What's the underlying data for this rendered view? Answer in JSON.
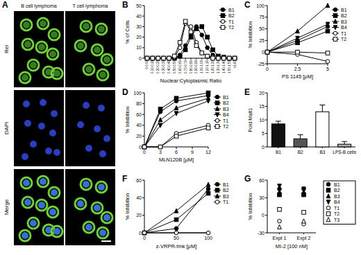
{
  "panel_a": {
    "title": "A",
    "columns": [
      "B cell lymphoma",
      "T cell lymphoma"
    ],
    "rows": [
      "Rel",
      "DAPI",
      "Merge"
    ]
  },
  "chart_data": [
    {
      "type": "line",
      "title": "B",
      "x_label": "Nuclear:Cytoplasmic Ratio",
      "y_label": "% of Cells",
      "categories": [
        "0-0.09",
        "0.10-0.19",
        "0.20-0.29",
        "0.30-0.39",
        "0.40-0.49",
        "0.50-0.59",
        "0.60-0.69",
        "0.70-0.79",
        "0.80-0.89",
        "0.90-0.99",
        "1.00-1.09",
        "1.10-1.19",
        "1.20-1.29",
        "1.30-1.39",
        "1.40-1.49",
        "1.50-1.59",
        ">1.60"
      ],
      "ylim": [
        0,
        50
      ],
      "yticks": [
        0,
        10,
        20,
        30,
        40,
        50
      ],
      "legend": "top-right",
      "series": [
        {
          "name": "B1",
          "color": "#000000",
          "marker": "circle",
          "values": [
            0,
            0,
            0,
            0,
            0,
            0,
            3,
            12,
            22,
            30,
            22,
            10,
            3,
            1,
            0,
            0,
            0
          ]
        },
        {
          "name": "B2",
          "color": "#000000",
          "marker": "square",
          "values": [
            0,
            0,
            0,
            0,
            0,
            0,
            2,
            8,
            20,
            28,
            30,
            20,
            8,
            2,
            1,
            0,
            0
          ]
        },
        {
          "name": "T1",
          "color": "#000000",
          "marker": "open-circle",
          "values": [
            0,
            0,
            0,
            0,
            0,
            1,
            10,
            33,
            30,
            15,
            5,
            2,
            1,
            0,
            0,
            0,
            0
          ]
        },
        {
          "name": "T2",
          "color": "#000000",
          "marker": "open-square",
          "values": [
            0,
            0,
            0,
            0,
            0,
            2,
            15,
            35,
            25,
            12,
            5,
            2,
            0,
            0,
            0,
            0,
            0
          ]
        }
      ]
    },
    {
      "type": "line",
      "title": "C",
      "x_label": "PS 1145 [μM]",
      "y_label": "% Inhibition",
      "x": [
        0,
        2.5,
        5
      ],
      "xlim": [
        0,
        5
      ],
      "xticks": [
        0,
        2.5,
        5
      ],
      "ylim": [
        -25,
        100
      ],
      "yticks": [
        -25,
        0,
        25,
        50,
        75,
        100
      ],
      "legend": "top-right",
      "series": [
        {
          "name": "B1",
          "color": "#000000",
          "marker": "circle",
          "values": [
            0,
            25,
            55
          ]
        },
        {
          "name": "B2",
          "color": "#000000",
          "marker": "square",
          "values": [
            0,
            20,
            45
          ]
        },
        {
          "name": "B3",
          "color": "#000000",
          "marker": "triangle",
          "values": [
            0,
            45,
            100
          ]
        },
        {
          "name": "B4",
          "color": "#000000",
          "marker": "triangle-down",
          "values": [
            0,
            30,
            60
          ]
        },
        {
          "name": "T1",
          "color": "#000000",
          "marker": "open-circle",
          "values": [
            0,
            -5,
            -20
          ]
        },
        {
          "name": "T2",
          "color": "#000000",
          "marker": "open-square",
          "values": [
            0,
            0,
            -2
          ]
        }
      ]
    },
    {
      "type": "line",
      "title": "D",
      "x_label": "MLN120B [μM]",
      "y_label": "% Inhibition",
      "x": [
        0,
        3,
        6,
        12
      ],
      "xlim": [
        0,
        12
      ],
      "xticks": [
        0,
        3,
        6,
        9,
        12
      ],
      "ylim": [
        0,
        100
      ],
      "yticks": [
        0,
        20,
        40,
        60,
        80,
        100
      ],
      "legend": "top-right",
      "series": [
        {
          "name": "B1",
          "color": "#000000",
          "marker": "circle",
          "values": [
            0,
            65,
            85,
            95
          ]
        },
        {
          "name": "B2",
          "color": "#000000",
          "marker": "square",
          "values": [
            0,
            70,
            90,
            100
          ]
        },
        {
          "name": "B3",
          "color": "#000000",
          "marker": "triangle",
          "values": [
            0,
            50,
            72,
            90
          ]
        },
        {
          "name": "B4",
          "color": "#000000",
          "marker": "triangle-down",
          "values": [
            0,
            40,
            62,
            85
          ]
        },
        {
          "name": "T1",
          "color": "#000000",
          "marker": "open-circle",
          "values": [
            0,
            0,
            25,
            40
          ]
        },
        {
          "name": "T2",
          "color": "#000000",
          "marker": "open-square",
          "values": [
            0,
            0,
            20,
            35
          ]
        }
      ]
    },
    {
      "type": "bar",
      "title": "E",
      "y_label": "Fold Malt1",
      "categories": [
        "B1",
        "B2",
        "B3",
        "LPS-B cells"
      ],
      "values": [
        8.5,
        3,
        13,
        1
      ],
      "errors": [
        1,
        1.5,
        2.5,
        1
      ],
      "colors": [
        "#111111",
        "#555555",
        "#ffffff",
        "#aaaaaa"
      ],
      "ylim": [
        0,
        20
      ],
      "yticks": [
        0,
        5,
        10,
        15,
        20
      ]
    },
    {
      "type": "line",
      "title": "F",
      "x_label": "z-VRPR-fmk [μM]",
      "y_label": "% Inhibition",
      "x": [
        0,
        50,
        100
      ],
      "xlim": [
        0,
        100
      ],
      "xticks": [
        0,
        50,
        100
      ],
      "ylim": [
        0,
        60
      ],
      "yticks": [
        0,
        20,
        40,
        60
      ],
      "legend": "top-right",
      "series": [
        {
          "name": "B1",
          "color": "#000000",
          "marker": "circle",
          "values": [
            0,
            5,
            50
          ]
        },
        {
          "name": "B2",
          "color": "#000000",
          "marker": "square",
          "values": [
            0,
            15,
            45
          ]
        },
        {
          "name": "B3",
          "color": "#000000",
          "marker": "triangle",
          "values": [
            0,
            25,
            55
          ]
        },
        {
          "name": "T1",
          "color": "#000000",
          "marker": "open-circle",
          "values": [
            0,
            0,
            0
          ]
        }
      ]
    },
    {
      "type": "scatter",
      "title": "G",
      "x_label": "MI-2 [100 nM]",
      "y_label": "% Inhibition",
      "categories": [
        "Expt 1",
        "Expt 2"
      ],
      "ylim": [
        -30,
        60
      ],
      "yticks": [
        -30,
        0,
        30,
        60
      ],
      "legend": "right",
      "series": [
        {
          "name": "B1",
          "color": "#000000",
          "marker": "circle",
          "values": [
            45,
            45
          ]
        },
        {
          "name": "B2",
          "color": "#000000",
          "marker": "square",
          "values": [
            35,
            35
          ]
        },
        {
          "name": "B3",
          "color": "#000000",
          "marker": "triangle",
          "values": [
            40,
            40
          ]
        },
        {
          "name": "B4",
          "color": "#000000",
          "marker": "triangle-down",
          "values": [
            50,
            45
          ]
        },
        {
          "name": "T1",
          "color": "#000000",
          "marker": "open-circle",
          "values": [
            -10,
            -15
          ]
        },
        {
          "name": "T2",
          "color": "#000000",
          "marker": "open-square",
          "values": [
            10,
            5
          ]
        },
        {
          "name": "T3",
          "color": "#000000",
          "marker": "open-triangle",
          "values": [
            -20,
            -10
          ]
        }
      ]
    }
  ]
}
